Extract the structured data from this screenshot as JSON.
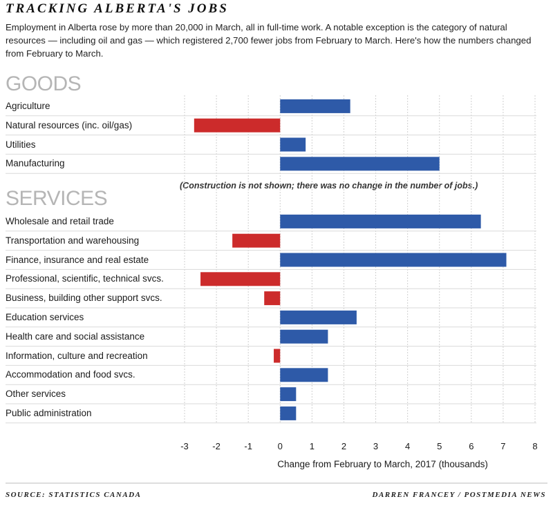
{
  "header": {
    "title": "TRACKING ALBERTA'S JOBS",
    "intro": "Employment in Alberta rose by more than 20,000 in March, all in full-time work. A notable exception is the category of natural resources — including oil and gas — which registered 2,700 fewer jobs from February to March. Here's how the numbers changed from February to March."
  },
  "note": "(Construction is not shown; there was no change in the number of jobs.)",
  "footer": {
    "source": "SOURCE: STATISTICS CANADA",
    "credit": "DARREN FRANCEY / POSTMEDIA NEWS"
  },
  "colors": {
    "positive": "#2e5aa8",
    "negative": "#cc2b2b",
    "grid": "#cfcfcf",
    "separator": "#d9d9d9"
  },
  "chart_data": {
    "type": "bar",
    "orientation": "horizontal",
    "xlabel": "Change from February to March, 2017 (thousands)",
    "xlim": [
      -3,
      8
    ],
    "xticks": [
      -3,
      -2,
      -1,
      0,
      1,
      2,
      3,
      4,
      5,
      6,
      7,
      8
    ],
    "grid": "vertical",
    "groups": [
      {
        "name": "GOODS",
        "categories": [
          "Agriculture",
          "Natural resources (inc. oil/gas)",
          "Utilities",
          "Manufacturing"
        ],
        "values": [
          2.2,
          -2.7,
          0.8,
          5.0
        ]
      },
      {
        "name": "SERVICES",
        "categories": [
          "Wholesale and retail trade",
          "Transportation and warehousing",
          "Finance, insurance and real estate",
          "Professional, scientific, technical svcs.",
          "Business, building other support svcs.",
          "Education services",
          "Health care and social assistance",
          "Information, culture and recreation",
          "Accommodation and food svcs.",
          "Other services",
          "Public administration"
        ],
        "values": [
          6.3,
          -1.5,
          7.1,
          -2.5,
          -0.5,
          2.4,
          1.5,
          -0.2,
          1.5,
          0.5,
          0.5
        ]
      }
    ]
  }
}
